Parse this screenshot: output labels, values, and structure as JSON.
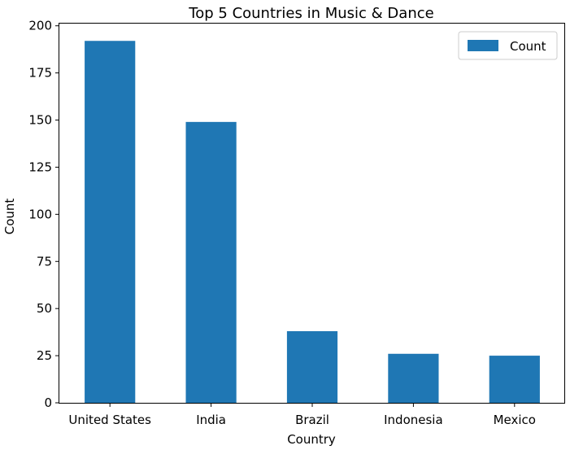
{
  "chart_data": {
    "type": "bar",
    "title": "Top 5 Countries in Music & Dance",
    "xlabel": "Country",
    "ylabel": "Count",
    "categories": [
      "United States",
      "India",
      "Brazil",
      "Indonesia",
      "Mexico"
    ],
    "series": [
      {
        "name": "Count",
        "values": [
          192,
          149,
          38,
          26,
          25
        ],
        "color": "#1f77b4"
      }
    ],
    "ylim": [
      0,
      201.6
    ],
    "yticks": [
      0,
      25,
      50,
      75,
      100,
      125,
      150,
      175,
      200
    ],
    "grid": false,
    "legend": "top-right"
  }
}
